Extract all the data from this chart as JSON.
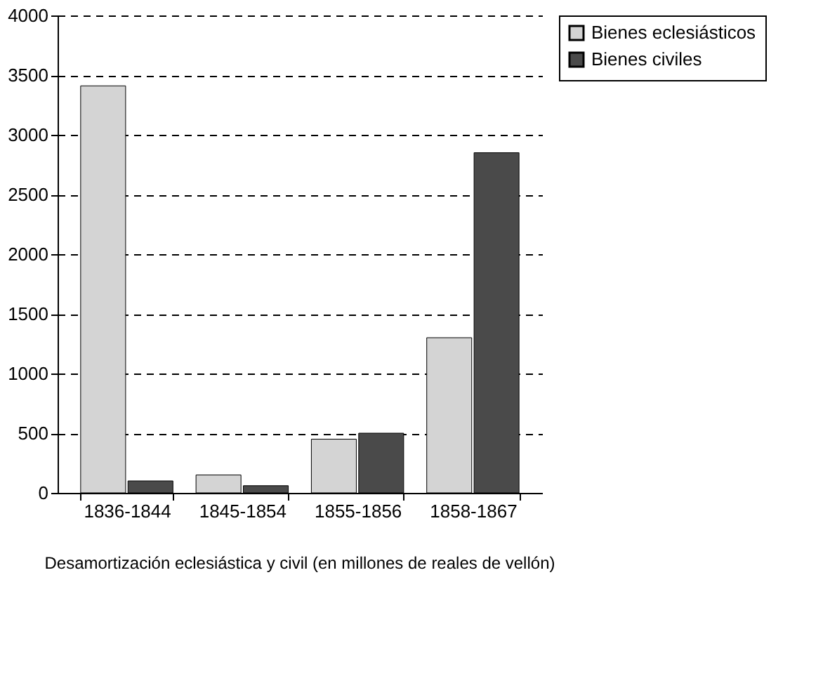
{
  "chart_data": {
    "type": "bar",
    "categories": [
      "1836-1844",
      "1845-1854",
      "1855-1856",
      "1858-1867"
    ],
    "series": [
      {
        "name": "Bienes eclesiásticos",
        "color": "#d4d4d4",
        "values": [
          3410,
          150,
          450,
          1300
        ]
      },
      {
        "name": "Bienes civiles",
        "color": "#4a4a4a",
        "values": [
          100,
          60,
          500,
          2850
        ]
      }
    ],
    "ylim": [
      0,
      4000
    ],
    "yticks": [
      0,
      500,
      1000,
      1500,
      2000,
      2500,
      3000,
      3500,
      4000
    ],
    "grid": "y",
    "legend": "right",
    "annotations": [
      "Desamortización eclesiástica y civil (en millones de reales de vellón)"
    ]
  }
}
